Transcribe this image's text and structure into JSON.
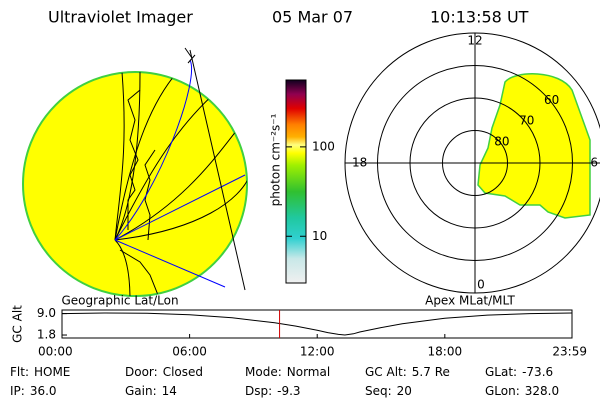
{
  "header": {
    "title": "Ultraviolet Imager",
    "date": "05 Mar 07",
    "time": "10:13:58 UT"
  },
  "left_panel": {
    "label": "Geographic Lat/Lon"
  },
  "right_panel": {
    "label": "Apex MLat/MLT",
    "rlim": [
      90,
      50
    ],
    "lat_ticks": [
      80,
      70,
      60
    ],
    "mlt_ticks": [
      12,
      18,
      6,
      0
    ]
  },
  "colorbar": {
    "label": "photon cm⁻²s⁻¹",
    "log": true,
    "lim": [
      3,
      560
    ],
    "ticks": [
      100,
      10
    ]
  },
  "altitude_plot": {
    "ylabel": "GC Alt",
    "xlim": [
      0,
      23.98
    ],
    "ylim": [
      0.8,
      10.2
    ],
    "yticks": [
      {
        "value": 9,
        "label": "9.0"
      },
      {
        "value": 1.8,
        "label": "1.8"
      }
    ],
    "xticks": [
      {
        "value": 0,
        "label": "00:00"
      },
      {
        "value": 6,
        "label": "06:00"
      },
      {
        "value": 12,
        "label": "12:00"
      },
      {
        "value": 18,
        "label": "18:00"
      },
      {
        "value": 23.98,
        "label": "23:59"
      }
    ],
    "x": [
      0,
      2,
      4,
      6,
      8,
      10,
      11,
      12,
      12.5,
      13,
      13.3,
      13.7,
      14,
      15,
      16,
      18,
      20,
      22,
      23.98
    ],
    "values": [
      9.0,
      9.2,
      9.1,
      8.6,
      7.6,
      5.9,
      4.8,
      3.4,
      2.6,
      2.0,
      1.8,
      2.2,
      2.8,
      4.3,
      5.6,
      7.4,
      8.5,
      9.0,
      9.2
    ],
    "current_time": 10.23
  },
  "status": [
    [
      {
        "label": "Flt:",
        "value": "HOME"
      },
      {
        "label": "Door:",
        "value": "Closed"
      },
      {
        "label": "Mode:",
        "value": "Normal"
      },
      {
        "label": "GC Alt:",
        "value": "5.7 Re"
      },
      {
        "label": "GLat:",
        "value": "-73.6"
      }
    ],
    [
      {
        "label": "IP:",
        "value": "36.0"
      },
      {
        "label": "Gain:",
        "value": "14"
      },
      {
        "label": "Dsp:",
        "value": "-9.3"
      },
      {
        "label": "Seq:",
        "value": "20"
      },
      {
        "label": "GLon:",
        "value": "328.0"
      }
    ]
  ]
}
